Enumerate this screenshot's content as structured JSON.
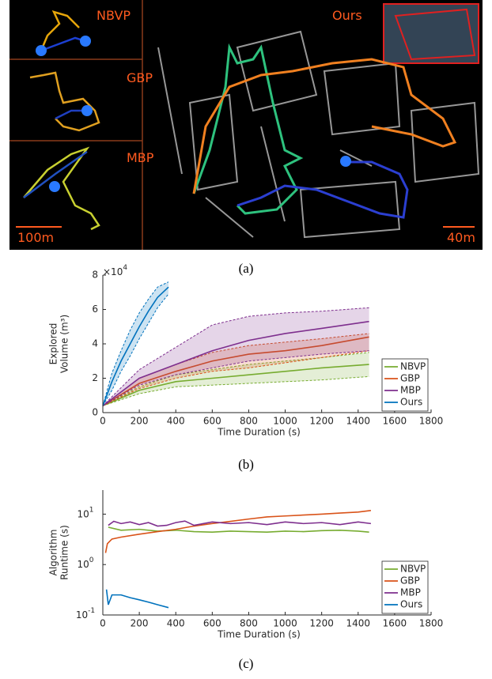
{
  "figure": {
    "panel_a": {
      "method_labels": [
        "NBVP",
        "GBP",
        "MBP",
        "Ours"
      ],
      "scale_left": "100m",
      "scale_right": "40m"
    },
    "captions": [
      "(a)",
      "(b)",
      "(c)"
    ]
  },
  "chart_data": [
    {
      "type": "line",
      "x_label": "Time Duration (s)",
      "y_label": [
        "Explored",
        "Volume (m³)"
      ],
      "y_scale_label": "×10",
      "y_scale_exponent": "4",
      "xlim": [
        0,
        1800
      ],
      "xticks": [
        0,
        200,
        400,
        600,
        800,
        1000,
        1200,
        1400,
        1600,
        1800
      ],
      "ylim": [
        0,
        8
      ],
      "yticks": [
        0,
        2,
        4,
        6,
        8
      ],
      "log_y": false,
      "legend": "southeast",
      "series": [
        {
          "name": "NBVP",
          "color": "#77ac30",
          "x": [
            0,
            200,
            400,
            600,
            800,
            1000,
            1200,
            1460
          ],
          "values": [
            0.4,
            1.3,
            1.8,
            2.0,
            2.2,
            2.4,
            2.6,
            2.8
          ],
          "upper": [
            0.4,
            1.5,
            2.2,
            2.5,
            2.8,
            3.0,
            3.2,
            3.5
          ],
          "lower": [
            0.4,
            1.1,
            1.5,
            1.6,
            1.7,
            1.8,
            1.9,
            2.1
          ]
        },
        {
          "name": "GBP",
          "color": "#d95319",
          "x": [
            0,
            200,
            400,
            600,
            800,
            1000,
            1200,
            1460
          ],
          "values": [
            0.4,
            1.7,
            2.4,
            3.0,
            3.4,
            3.6,
            3.9,
            4.4
          ],
          "upper": [
            0.4,
            2.0,
            2.8,
            3.5,
            3.9,
            4.1,
            4.3,
            4.6
          ],
          "lower": [
            0.4,
            1.4,
            2.0,
            2.4,
            2.6,
            2.9,
            3.2,
            3.6
          ]
        },
        {
          "name": "MBP",
          "color": "#7e2f8e",
          "x": [
            0,
            200,
            400,
            600,
            800,
            1000,
            1200,
            1460
          ],
          "values": [
            0.4,
            2.0,
            2.8,
            3.6,
            4.2,
            4.6,
            4.9,
            5.3
          ],
          "upper": [
            0.4,
            2.5,
            3.8,
            5.1,
            5.6,
            5.8,
            5.9,
            6.1
          ],
          "lower": [
            0.4,
            1.6,
            2.2,
            2.6,
            3.0,
            3.2,
            3.4,
            3.6
          ]
        },
        {
          "name": "Ours",
          "color": "#0072bd",
          "x": [
            0,
            50,
            100,
            150,
            200,
            250,
            300,
            360
          ],
          "values": [
            0.4,
            1.8,
            3.0,
            4.0,
            5.0,
            5.9,
            6.7,
            7.3
          ],
          "upper": [
            0.4,
            2.3,
            3.6,
            4.8,
            5.8,
            6.6,
            7.3,
            7.6
          ],
          "lower": [
            0.4,
            1.3,
            2.4,
            3.3,
            4.3,
            5.2,
            6.1,
            6.9
          ]
        }
      ]
    },
    {
      "type": "line",
      "x_label": "Time Duration (s)",
      "y_label": [
        "Algorithm",
        "Runtime (s)"
      ],
      "xlim": [
        0,
        1800
      ],
      "xticks": [
        0,
        200,
        400,
        600,
        800,
        1000,
        1200,
        1400,
        1600,
        1800
      ],
      "ylim": [
        0.1,
        30
      ],
      "yticks": [
        {
          "value": 0.1,
          "label": "10",
          "exponent": "-1"
        },
        {
          "value": 1,
          "label": "10",
          "exponent": "0"
        },
        {
          "value": 10,
          "label": "10",
          "exponent": "1"
        }
      ],
      "log_y": true,
      "legend": "southeast",
      "series": [
        {
          "name": "NBVP",
          "color": "#77ac30",
          "x": [
            30,
            100,
            200,
            300,
            400,
            500,
            600,
            700,
            800,
            900,
            1000,
            1100,
            1200,
            1300,
            1400,
            1460
          ],
          "values": [
            5.5,
            4.8,
            5.0,
            4.6,
            4.8,
            4.5,
            4.4,
            4.6,
            4.5,
            4.4,
            4.6,
            4.5,
            4.7,
            4.8,
            4.6,
            4.4
          ]
        },
        {
          "name": "GBP",
          "color": "#d95319",
          "x": [
            15,
            25,
            50,
            100,
            200,
            300,
            400,
            500,
            600,
            700,
            800,
            900,
            1000,
            1100,
            1200,
            1300,
            1400,
            1470
          ],
          "values": [
            1.7,
            2.6,
            3.2,
            3.5,
            4.0,
            4.5,
            5.0,
            5.8,
            6.5,
            7.2,
            8.0,
            8.8,
            9.2,
            9.6,
            10.0,
            10.5,
            11.0,
            11.8
          ]
        },
        {
          "name": "MBP",
          "color": "#7e2f8e",
          "x": [
            30,
            60,
            100,
            150,
            200,
            250,
            300,
            350,
            400,
            450,
            500,
            600,
            700,
            800,
            900,
            1000,
            1100,
            1200,
            1300,
            1400,
            1470
          ],
          "values": [
            6.0,
            7.2,
            6.5,
            7.0,
            6.2,
            6.8,
            5.8,
            6.0,
            6.8,
            7.3,
            6.0,
            7.0,
            6.5,
            6.8,
            6.2,
            7.0,
            6.5,
            6.8,
            6.2,
            7.0,
            6.5
          ]
        },
        {
          "name": "Ours",
          "color": "#0072bd",
          "x": [
            20,
            30,
            50,
            100,
            150,
            200,
            250,
            300,
            360
          ],
          "values": [
            0.32,
            0.16,
            0.25,
            0.25,
            0.22,
            0.2,
            0.18,
            0.16,
            0.14
          ]
        }
      ]
    }
  ]
}
